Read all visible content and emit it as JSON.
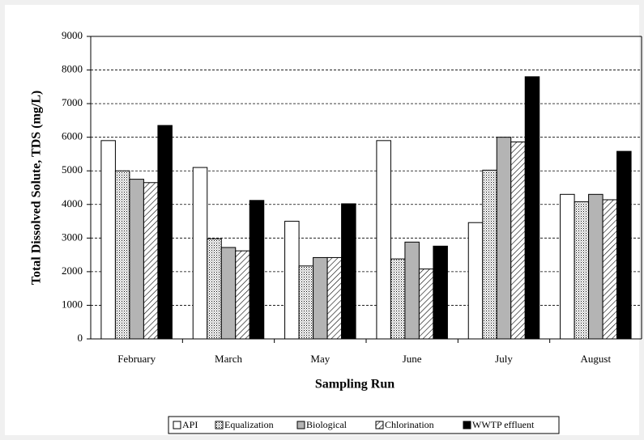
{
  "chart_data": {
    "type": "bar",
    "y_label": "Total Dissolved Solute, TDS (mg/L)",
    "x_label": "Sampling Run",
    "categories": [
      "February",
      "March",
      "May",
      "June",
      "July",
      "August"
    ],
    "series": [
      {
        "name": "API",
        "values": [
          5900,
          5100,
          3500,
          5900,
          3460,
          4300
        ]
      },
      {
        "name": "Equalization",
        "values": [
          5000,
          2980,
          2170,
          2380,
          5020,
          4080
        ]
      },
      {
        "name": "Biological",
        "values": [
          4750,
          2720,
          2420,
          2880,
          6000,
          4300
        ]
      },
      {
        "name": "Chlorination",
        "values": [
          4650,
          2620,
          2420,
          2080,
          5860,
          4140
        ]
      },
      {
        "name": "WWTP effluent",
        "values": [
          6350,
          4120,
          4020,
          2760,
          7800,
          5580
        ]
      }
    ],
    "ylim": [
      0,
      9000
    ],
    "yticks": [
      0,
      1000,
      2000,
      3000,
      4000,
      5000,
      6000,
      7000,
      8000,
      9000
    ],
    "grid": true
  }
}
